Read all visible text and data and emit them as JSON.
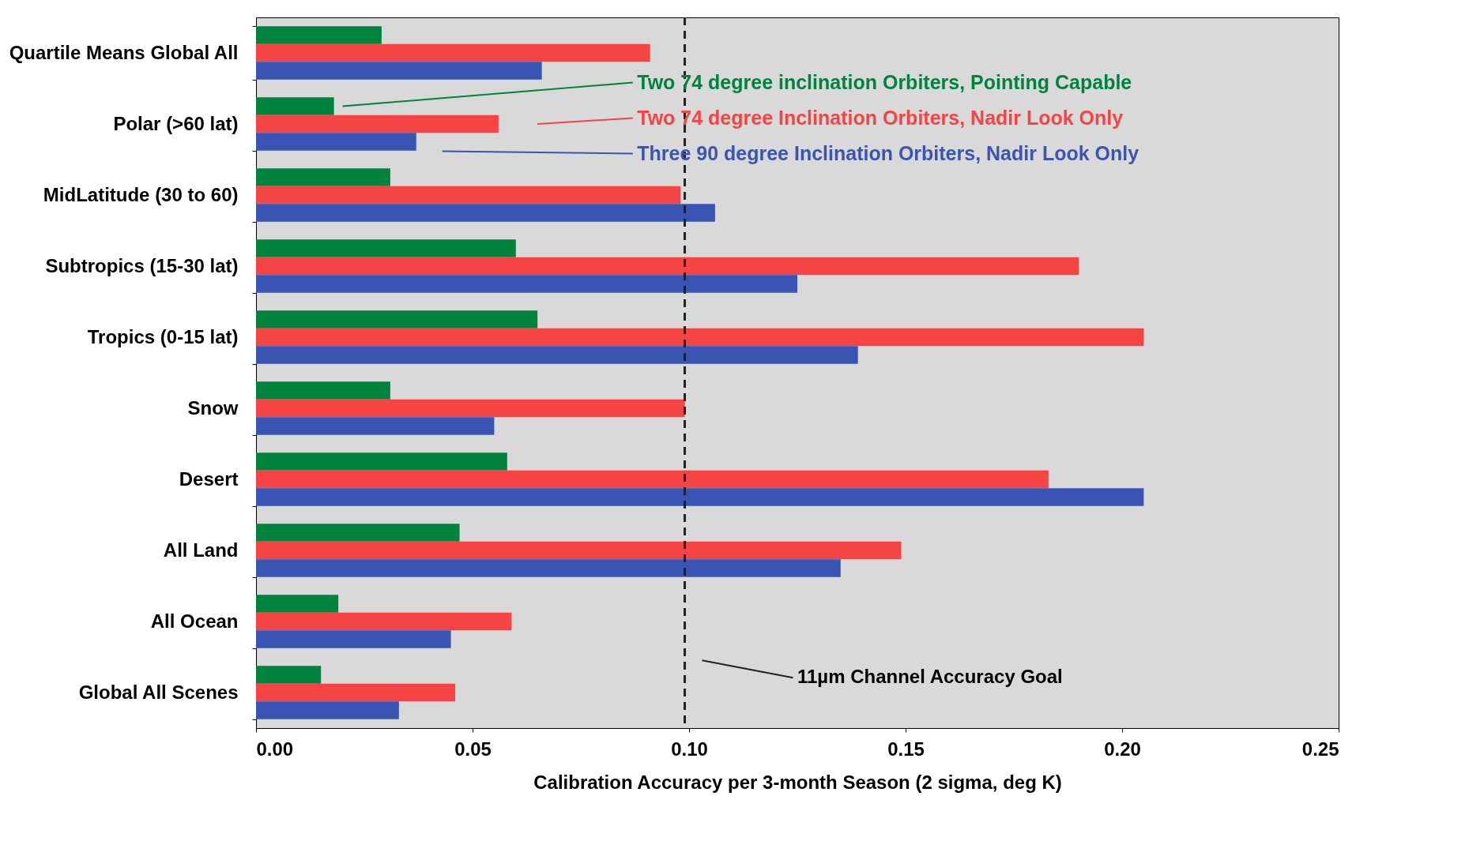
{
  "chart_data": {
    "type": "bar",
    "orientation": "horizontal",
    "xlabel": "Calibration Accuracy per 3-month Season (2 sigma, deg K)",
    "categories": [
      "Quartile Means Global All",
      "Polar (>60 lat)",
      "MidLatitude (30 to 60)",
      "Subtropics (15-30 lat)",
      "Tropics (0-15 lat)",
      "Snow",
      "Desert",
      "All Land",
      "All Ocean",
      "Global All Scenes"
    ],
    "series": [
      {
        "name": "Two 74 degree inclination Orbiters, Pointing Capable",
        "color": "#00843d",
        "values": [
          0.029,
          0.018,
          0.031,
          0.06,
          0.065,
          0.031,
          0.058,
          0.047,
          0.019,
          0.015
        ]
      },
      {
        "name": "Two 74 degree Inclination Orbiters, Nadir Look Only",
        "color": "#f44444",
        "values": [
          0.091,
          0.056,
          0.098,
          0.19,
          0.205,
          0.099,
          0.183,
          0.149,
          0.059,
          0.046
        ]
      },
      {
        "name": "Three 90 degree Inclination Orbiters, Nadir Look Only",
        "color": "#3a54b4",
        "values": [
          0.066,
          0.037,
          0.106,
          0.125,
          0.139,
          0.055,
          0.205,
          0.135,
          0.045,
          0.033
        ]
      }
    ],
    "xlim": [
      0,
      0.25
    ],
    "xticks": [
      {
        "value": 0,
        "label": "0.00"
      },
      {
        "value": 0.05,
        "label": "0.05"
      },
      {
        "value": 0.1,
        "label": "0.10"
      },
      {
        "value": 0.15,
        "label": "0.15"
      },
      {
        "value": 0.2,
        "label": "0.20"
      },
      {
        "value": 0.25,
        "label": "0.25"
      }
    ],
    "ref_lines": [
      {
        "axis": "x",
        "value": 0.099,
        "label": "11µm Channel Accuracy Goal",
        "line_style": "dashed",
        "color": "#222222"
      }
    ],
    "grid": false,
    "legend": "top right"
  }
}
